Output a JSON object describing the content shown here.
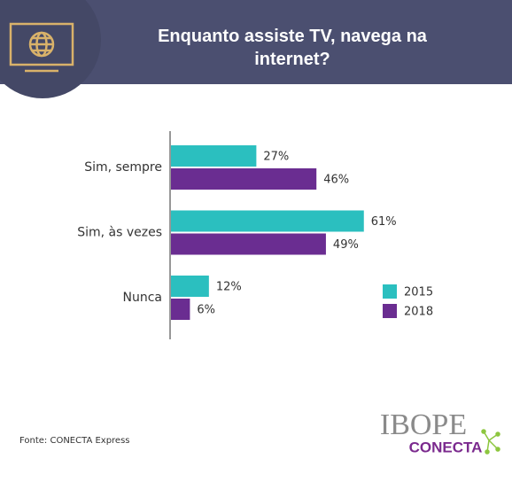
{
  "chart_data": {
    "type": "hbar",
    "title": "Enquanto assiste TV, navega na internet?",
    "categories": [
      "Sim, sempre",
      "Sim, às vezes",
      "Nunca"
    ],
    "series": [
      {
        "name": "2015",
        "color": "#2bbfbf",
        "values": [
          27,
          61,
          12
        ],
        "value_labels": [
          "27%",
          "61%",
          "12%"
        ]
      },
      {
        "name": "2018",
        "color": "#6a2d91",
        "values": [
          46,
          49,
          6
        ],
        "value_labels": [
          "46%",
          "49%",
          "6%"
        ]
      }
    ],
    "legend": "right",
    "source": "Fonte: CONECTA Express",
    "logo": {
      "top": "IBOPE",
      "bottom": "CONECTA"
    }
  }
}
